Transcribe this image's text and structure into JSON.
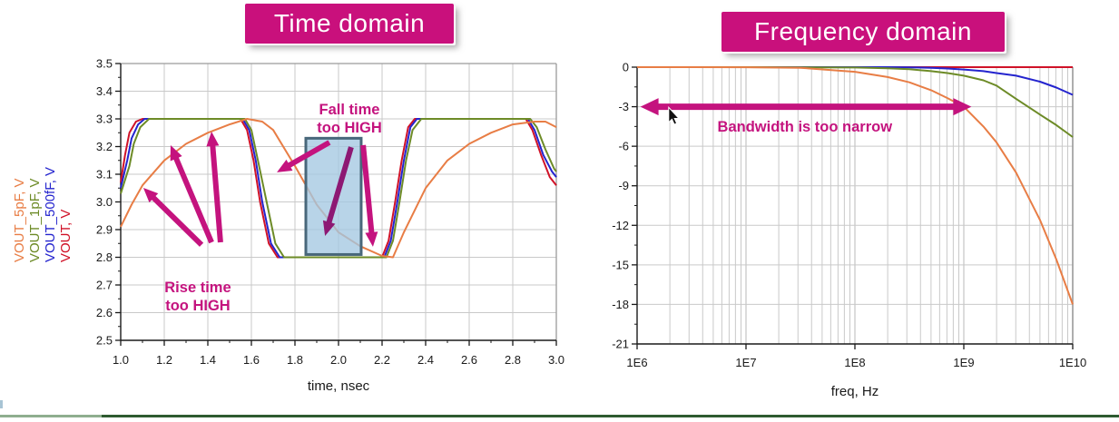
{
  "titles": {
    "time_domain": "Time domain",
    "frequency_domain": "Frequency domain"
  },
  "title_style": {
    "bg": "#C9107C",
    "text_color": "#FFFFFF"
  },
  "colors": {
    "annotation": "#C4137E",
    "annotation_dark": "#8D1873",
    "grid": "#C9C9C9",
    "grid_major_log": "#B8B8B8",
    "frame": "#9A9A9A",
    "axis": "#1A1A1A",
    "highlight_box_fill": "#A4C8E1",
    "highlight_box_border": "#48677A",
    "footer_line": "#2E5B30",
    "footer_left_segment": "#8FAE8F"
  },
  "chart_data": [
    {
      "type": "line",
      "title": "Time domain",
      "xlabel": "time, nsec",
      "xlim": [
        1.0,
        3.0
      ],
      "ylim": [
        2.5,
        3.5
      ],
      "grid": true,
      "xtick_values": [
        1.0,
        1.2,
        1.4,
        1.6,
        1.8,
        2.0,
        2.2,
        2.4,
        2.6,
        2.8,
        3.0
      ],
      "xtick_labels": [
        "1.0",
        "1.2",
        "1.4",
        "1.6",
        "1.8",
        "2.0",
        "2.2",
        "2.4",
        "2.6",
        "2.8",
        "3.0"
      ],
      "xtick_minor": [
        1.1,
        1.3,
        1.5,
        1.7,
        1.9,
        2.1,
        2.3,
        2.5,
        2.7,
        2.9
      ],
      "ytick_values": [
        2.5,
        2.6,
        2.7,
        2.8,
        2.9,
        3.0,
        3.1,
        3.2,
        3.3,
        3.4,
        3.5
      ],
      "ytick_labels": [
        "2.5",
        "2.6",
        "2.7",
        "2.8",
        "2.9",
        "3.0",
        "3.1",
        "3.2",
        "3.3",
        "3.4",
        "3.5"
      ],
      "ytick_minor": [
        2.55,
        2.65,
        2.75,
        2.85,
        2.95,
        3.05,
        3.15,
        3.25,
        3.35,
        3.45
      ],
      "trace_axis_labels": [
        {
          "text": "VOUT_5pF, V",
          "color": "#E87D45"
        },
        {
          "text": "VOUT_1pF, V",
          "color": "#6D8B27"
        },
        {
          "text": "VOUT_500fF, V",
          "color": "#2424CE"
        },
        {
          "text": "VOUT, V",
          "color": "#D01228"
        }
      ],
      "series": [
        {
          "name": "VOUT, V",
          "color": "#D01228",
          "x": [
            1.0,
            1.02,
            1.04,
            1.07,
            1.1,
            1.55,
            1.58,
            1.61,
            1.64,
            1.68,
            1.72,
            2.2,
            2.23,
            2.26,
            2.29,
            2.32,
            2.35,
            2.86,
            2.89,
            2.93,
            2.97,
            3.0
          ],
          "y": [
            3.07,
            3.17,
            3.25,
            3.29,
            3.3,
            3.3,
            3.26,
            3.15,
            3.0,
            2.85,
            2.8,
            2.8,
            2.86,
            3.0,
            3.15,
            3.27,
            3.3,
            3.3,
            3.26,
            3.17,
            3.09,
            3.06
          ]
        },
        {
          "name": "VOUT_500fF, V",
          "color": "#2424CE",
          "x": [
            1.0,
            1.03,
            1.05,
            1.08,
            1.11,
            1.56,
            1.59,
            1.62,
            1.65,
            1.69,
            1.73,
            2.21,
            2.24,
            2.27,
            2.3,
            2.33,
            2.36,
            2.87,
            2.9,
            2.94,
            2.98,
            3.0
          ],
          "y": [
            3.05,
            3.15,
            3.23,
            3.28,
            3.3,
            3.3,
            3.26,
            3.15,
            3.0,
            2.85,
            2.8,
            2.8,
            2.86,
            3.0,
            3.15,
            3.27,
            3.3,
            3.3,
            3.26,
            3.17,
            3.11,
            3.09
          ]
        },
        {
          "name": "VOUT_1pF, V",
          "color": "#6D8B27",
          "x": [
            1.0,
            1.04,
            1.06,
            1.09,
            1.13,
            1.57,
            1.6,
            1.63,
            1.67,
            1.71,
            1.75,
            2.22,
            2.25,
            2.28,
            2.31,
            2.34,
            2.38,
            2.88,
            2.91,
            2.95,
            2.99,
            3.0
          ],
          "y": [
            3.03,
            3.13,
            3.21,
            3.27,
            3.3,
            3.3,
            3.26,
            3.15,
            3.0,
            2.85,
            2.8,
            2.8,
            2.86,
            3.0,
            3.15,
            3.26,
            3.3,
            3.3,
            3.27,
            3.19,
            3.12,
            3.11
          ]
        },
        {
          "name": "VOUT_5pF, V",
          "color": "#E87D45",
          "x": [
            1.0,
            1.05,
            1.1,
            1.2,
            1.3,
            1.4,
            1.5,
            1.58,
            1.65,
            1.7,
            1.8,
            1.9,
            2.0,
            2.1,
            2.2,
            2.25,
            2.3,
            2.4,
            2.5,
            2.6,
            2.7,
            2.8,
            2.9,
            2.95,
            3.0
          ],
          "y": [
            2.91,
            2.99,
            3.06,
            3.15,
            3.21,
            3.25,
            3.28,
            3.3,
            3.29,
            3.26,
            3.13,
            2.99,
            2.89,
            2.84,
            2.805,
            2.8,
            2.89,
            3.05,
            3.15,
            3.21,
            3.25,
            3.28,
            3.29,
            3.29,
            3.27
          ]
        }
      ],
      "annotations": {
        "rise_label": {
          "text": "Rise time\ntoo HIGH",
          "t": 1.354,
          "v": 2.7
        },
        "fall_label": {
          "text": "Fall time\ntoo HIGH",
          "t": 2.05,
          "v": 3.3
        },
        "highlight_box": {
          "t1": 1.85,
          "t2": 2.104,
          "v1": 2.81,
          "v2": 3.23
        },
        "arrows": [
          {
            "from": [
              1.371,
              2.845
            ],
            "to": [
              1.104,
              3.051
            ],
            "color": "#C4137E"
          },
          {
            "from": [
              1.417,
              2.854
            ],
            "to": [
              1.229,
              3.205
            ],
            "color": "#C4137E"
          },
          {
            "from": [
              1.458,
              2.854
            ],
            "to": [
              1.417,
              3.254
            ],
            "color": "#C4137E"
          },
          {
            "from": [
              1.958,
              3.215
            ],
            "to": [
              1.717,
              3.107
            ],
            "color": "#C4137E"
          },
          {
            "from": [
              2.058,
              3.198
            ],
            "to": [
              1.938,
              2.877
            ],
            "color": "#8D1873"
          },
          {
            "from": [
              2.113,
              3.205
            ],
            "to": [
              2.158,
              2.838
            ],
            "color": "#C4137E"
          }
        ]
      }
    },
    {
      "type": "line",
      "title": "Frequency domain",
      "xlabel": "freq, Hz",
      "x_scale": "log",
      "xlim_log": [
        6,
        10
      ],
      "ylim": [
        -21,
        0
      ],
      "grid": true,
      "xtick_values_log": [
        6,
        7,
        8,
        9,
        10
      ],
      "xtick_labels": [
        "1E6",
        "1E7",
        "1E8",
        "1E9",
        "1E10"
      ],
      "ytick_values": [
        0,
        -3,
        -6,
        -9,
        -12,
        -15,
        -18,
        -21
      ],
      "ytick_labels": [
        "0",
        "-3",
        "-6",
        "-9",
        "-12",
        "-15",
        "-18",
        "-21"
      ],
      "ytick_minor": [
        -1.5,
        -4.5,
        -7.5,
        -10.5,
        -13.5,
        -16.5,
        -19.5
      ],
      "series": [
        {
          "name": "VOUT, V",
          "color": "#D01228",
          "x_log": [
            6.0,
            10.0
          ],
          "y": [
            0,
            0
          ]
        },
        {
          "name": "VOUT_500fF, V",
          "color": "#2424CE",
          "x_log": [
            6.0,
            7.0,
            8.0,
            8.3,
            8.5,
            8.7,
            8.85,
            9.0,
            9.18,
            9.3,
            9.48,
            9.7,
            9.85,
            10.0
          ],
          "y": [
            0,
            0,
            0,
            0,
            -0.02,
            -0.05,
            -0.1,
            -0.18,
            -0.3,
            -0.45,
            -0.65,
            -1.1,
            -1.55,
            -2.1
          ]
        },
        {
          "name": "VOUT_1pF, V",
          "color": "#6D8B27",
          "x_log": [
            6.0,
            7.0,
            8.0,
            8.3,
            8.5,
            8.7,
            8.85,
            9.0,
            9.18,
            9.3,
            9.48,
            9.7,
            9.85,
            10.0
          ],
          "y": [
            0,
            0,
            -0.03,
            -0.08,
            -0.15,
            -0.3,
            -0.45,
            -0.65,
            -1.0,
            -1.4,
            -2.4,
            -3.6,
            -4.4,
            -5.3
          ]
        },
        {
          "name": "VOUT_5pF, V",
          "color": "#E87D45",
          "x_log": [
            6.0,
            7.0,
            7.5,
            8.0,
            8.3,
            8.5,
            8.7,
            8.85,
            9.0,
            9.18,
            9.3,
            9.48,
            9.7,
            9.85,
            10.0
          ],
          "y": [
            0,
            -0.01,
            -0.05,
            -0.35,
            -0.75,
            -1.15,
            -1.75,
            -2.35,
            -3.0,
            -4.5,
            -5.7,
            -8.0,
            -11.6,
            -14.6,
            -18.0
          ]
        }
      ],
      "annotations": {
        "bandwidth_label": {
          "text": "Bandwidth is too narrow",
          "x_log": 7.54,
          "y_db": -4.9
        },
        "bandwidth_arrow": {
          "from": [
            6.03,
            -3.0
          ],
          "to": [
            9.07,
            -3.0
          ],
          "double": true,
          "color": "#C4137E"
        },
        "mouse_cursor": {
          "x_log": 6.29,
          "y_db": -3.05
        }
      }
    }
  ]
}
